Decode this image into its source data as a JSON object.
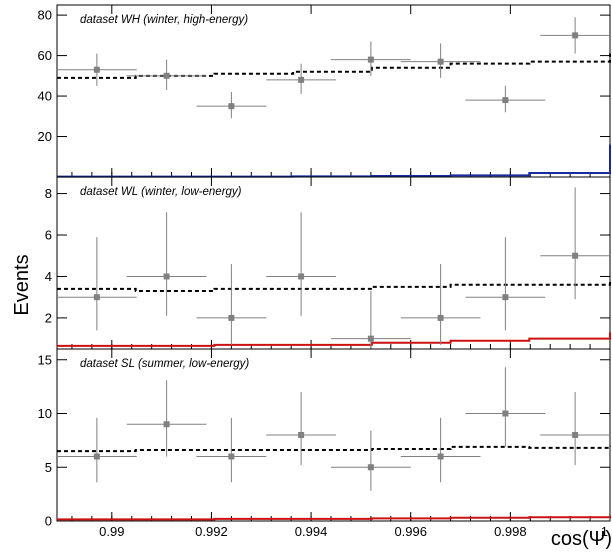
{
  "figure": {
    "ylabel": "Events",
    "xlabel": "cos(Ψ)",
    "x_tick_labels": [
      "0.99",
      "0.992",
      "0.994",
      "0.996",
      "0.998",
      "1"
    ],
    "x_ticks": [
      0.99,
      0.992,
      0.994,
      0.996,
      0.998,
      1.0
    ],
    "xlim": [
      0.9889,
      1.0
    ]
  },
  "chart_data": [
    {
      "type": "histogram",
      "title": "dataset WH (winter, high-energy)",
      "xlim": [
        0.9889,
        1.0
      ],
      "ylim": [
        0,
        85
      ],
      "y_ticks": [
        20,
        40,
        60,
        80
      ],
      "y_tick_labels": [
        "20",
        "40",
        "60",
        "80"
      ],
      "bin_edges": [
        0.9889,
        0.99048,
        0.99206,
        0.99364,
        0.99522,
        0.9968,
        0.99838,
        1.0
      ],
      "data_points": {
        "x": [
          0.9897,
          0.9911,
          0.9924,
          0.9938,
          0.9952,
          0.9966,
          0.9979,
          0.9993
        ],
        "y": [
          53,
          50,
          35,
          48,
          58,
          57,
          38,
          70
        ],
        "y_err_low": [
          8,
          7,
          6,
          7,
          8,
          8,
          6,
          9
        ],
        "y_err_high": [
          8,
          8,
          7,
          8,
          9,
          9,
          7,
          9
        ],
        "x_halfwidth": [
          0.0008,
          0.0008,
          0.0007,
          0.0007,
          0.0008,
          0.0008,
          0.0008,
          0.0007
        ],
        "color": "#808080"
      },
      "background": {
        "style": "dashed",
        "color": "#000000",
        "edges": [
          0.9889,
          0.99048,
          0.99206,
          0.99364,
          0.99522,
          0.9968,
          0.99838,
          1.0
        ],
        "values": [
          49,
          50,
          51,
          52,
          54,
          56,
          57,
          61
        ]
      },
      "signal": {
        "style": "solid",
        "color": "#1a2aa0",
        "edges": [
          0.9889,
          0.99048,
          0.99206,
          0.99364,
          0.99522,
          0.9968,
          0.99838,
          1.0
        ],
        "values": [
          0.2,
          0.2,
          0.2,
          0.3,
          0.5,
          0.8,
          2,
          16
        ]
      }
    },
    {
      "type": "histogram",
      "title": "dataset WL (winter, low-energy)",
      "xlim": [
        0.9889,
        1.0
      ],
      "ylim": [
        0.5,
        8.8
      ],
      "y_ticks": [
        2,
        4,
        6,
        8
      ],
      "y_tick_labels": [
        "2",
        "4",
        "6",
        "8"
      ],
      "bin_edges": [
        0.9889,
        0.99048,
        0.99206,
        0.99364,
        0.99522,
        0.9968,
        0.99838,
        1.0
      ],
      "data_points": {
        "x": [
          0.9897,
          0.9911,
          0.9924,
          0.9938,
          0.9952,
          0.9966,
          0.9979,
          0.9993
        ],
        "y": [
          3,
          4,
          2,
          4,
          1,
          2,
          3,
          5
        ],
        "y_err_low": [
          1.6,
          1.9,
          1.3,
          1.9,
          0.8,
          1.3,
          1.6,
          2.1
        ],
        "y_err_high": [
          2.9,
          3.1,
          2.6,
          3.1,
          2.3,
          2.6,
          2.9,
          3.3
        ],
        "x_halfwidth": [
          0.0008,
          0.0008,
          0.0007,
          0.0007,
          0.0008,
          0.0008,
          0.0008,
          0.0007
        ],
        "color": "#808080"
      },
      "background": {
        "style": "dashed",
        "color": "#000000",
        "edges": [
          0.9889,
          0.99048,
          0.99206,
          0.99364,
          0.99522,
          0.9968,
          0.99838,
          1.0
        ],
        "values": [
          3.4,
          3.3,
          3.4,
          3.4,
          3.5,
          3.6,
          3.6,
          3.8
        ]
      },
      "signal": {
        "style": "solid",
        "color": "#cc1111",
        "edges": [
          0.9889,
          0.99048,
          0.99206,
          0.99364,
          0.99522,
          0.9968,
          0.99838,
          1.0
        ],
        "values": [
          0.65,
          0.65,
          0.7,
          0.7,
          0.8,
          0.9,
          1.0,
          1.3
        ]
      }
    },
    {
      "type": "histogram",
      "title": "dataset SL (summer, low-energy)",
      "xlim": [
        0.9889,
        1.0
      ],
      "ylim": [
        0,
        16
      ],
      "y_ticks": [
        0,
        5,
        10,
        15
      ],
      "y_tick_labels": [
        "0",
        "5",
        "10",
        "15"
      ],
      "bin_edges": [
        0.9889,
        0.99048,
        0.99206,
        0.99364,
        0.99522,
        0.9968,
        0.99838,
        1.0
      ],
      "data_points": {
        "x": [
          0.9897,
          0.9911,
          0.9924,
          0.9938,
          0.9952,
          0.9966,
          0.9979,
          0.9993
        ],
        "y": [
          6,
          9,
          6,
          8,
          5,
          6,
          10,
          8
        ],
        "y_err_low": [
          2.4,
          3.0,
          2.4,
          2.8,
          2.2,
          2.4,
          3.1,
          2.8
        ],
        "y_err_high": [
          3.6,
          4.1,
          3.6,
          4.0,
          3.4,
          3.6,
          4.3,
          4.0
        ],
        "x_halfwidth": [
          0.0008,
          0.0008,
          0.0007,
          0.0007,
          0.0008,
          0.0008,
          0.0008,
          0.0007
        ],
        "color": "#808080"
      },
      "background": {
        "style": "dashed",
        "color": "#000000",
        "edges": [
          0.9889,
          0.99048,
          0.99206,
          0.99364,
          0.99522,
          0.9968,
          0.99838,
          1.0
        ],
        "values": [
          6.5,
          6.6,
          6.6,
          6.6,
          6.7,
          6.9,
          6.8,
          7.0
        ]
      },
      "signal": {
        "style": "solid",
        "color": "#cc1111",
        "edges": [
          0.9889,
          0.99048,
          0.99206,
          0.99364,
          0.99522,
          0.9968,
          0.99838,
          1.0
        ],
        "values": [
          0.15,
          0.15,
          0.2,
          0.2,
          0.25,
          0.3,
          0.35,
          0.5
        ]
      }
    }
  ]
}
